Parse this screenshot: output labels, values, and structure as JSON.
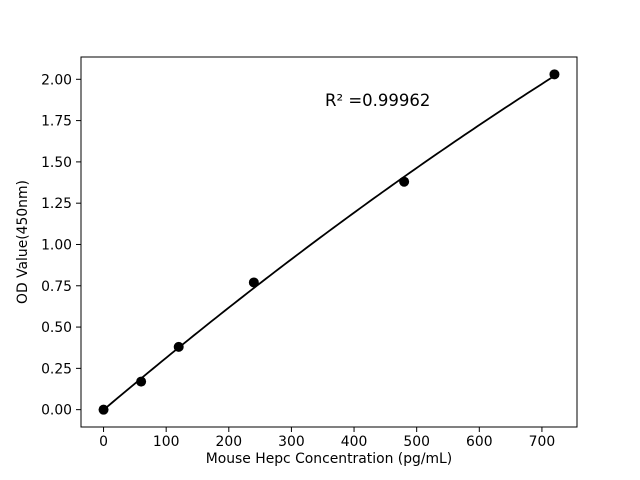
{
  "figure": {
    "background_color": "#ffffff",
    "foreground_color": "#000000"
  },
  "chart_data": {
    "type": "scatter",
    "title": "",
    "xlabel": "Mouse Hepc Concentration (pg/mL)",
    "ylabel": "OD Value(450nm)",
    "annotation": "R² =0.99962",
    "r_squared": 0.99962,
    "x": [
      0,
      60,
      120,
      240,
      480,
      720
    ],
    "y": [
      0.0,
      0.17,
      0.38,
      0.77,
      1.38,
      2.03
    ],
    "fit_type": "quadratic",
    "xtick_labels": [
      "0",
      "100",
      "200",
      "300",
      "400",
      "500",
      "600",
      "700"
    ],
    "xtick_values": [
      0,
      100,
      200,
      300,
      400,
      500,
      600,
      700
    ],
    "ytick_labels": [
      "0.00",
      "0.25",
      "0.50",
      "0.75",
      "1.00",
      "1.25",
      "1.50",
      "1.75",
      "2.00"
    ],
    "ytick_values": [
      0,
      0.25,
      0.5,
      0.75,
      1.0,
      1.25,
      1.5,
      1.75,
      2.0
    ],
    "xlim": [
      -36,
      756
    ],
    "ylim": [
      -0.105,
      2.135
    ],
    "grid": false,
    "legend": null,
    "line_color": "#000000",
    "marker_color": "#000000",
    "marker_shape": "circle"
  }
}
